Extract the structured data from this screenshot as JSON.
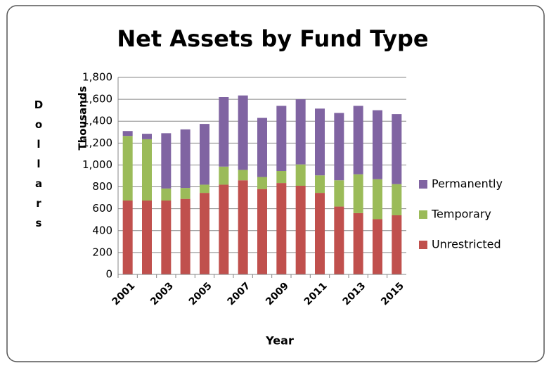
{
  "chart_data": {
    "type": "stacked_bar",
    "title": "Net Assets by Fund Type",
    "y_label": "Thousands",
    "y_side_label": "Dollars",
    "x_label": "Year",
    "categories": [
      "2001",
      null,
      "2003",
      null,
      "2005",
      null,
      "2007",
      null,
      "2009",
      null,
      "2011",
      null,
      "2013",
      null,
      "2015"
    ],
    "series": [
      {
        "name": "Unrestricted",
        "color": "#c0504d",
        "values": [
          675,
          675,
          675,
          690,
          745,
          820,
          860,
          780,
          835,
          810,
          745,
          620,
          560,
          505,
          540
        ]
      },
      {
        "name": "Temporary",
        "color": "#9bbb59",
        "values": [
          590,
          560,
          110,
          100,
          75,
          165,
          95,
          110,
          110,
          195,
          160,
          240,
          355,
          365,
          285
        ]
      },
      {
        "name": "Permanently",
        "color": "#8064a2",
        "values": [
          45,
          50,
          505,
          535,
          555,
          635,
          680,
          540,
          595,
          595,
          610,
          615,
          625,
          630,
          640
        ]
      }
    ],
    "ylim": [
      0,
      1800
    ],
    "yticks": [
      0,
      200,
      400,
      600,
      800,
      {
        "value": 1000,
        "label": "1,000"
      },
      {
        "value": 1200,
        "label": "1,200"
      },
      {
        "value": 1400,
        "label": "1,400"
      },
      {
        "value": 1600,
        "label": "1,600"
      },
      {
        "value": 1800,
        "label": "1,800"
      }
    ],
    "grid": true,
    "legend": "right"
  }
}
